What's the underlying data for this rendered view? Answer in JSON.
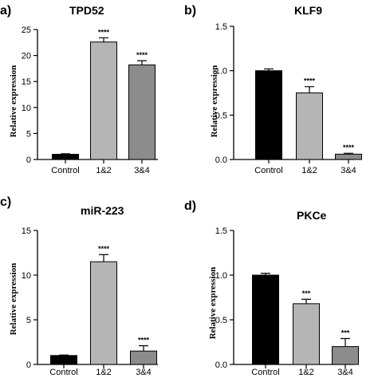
{
  "chart_data": [
    {
      "type": "bar",
      "panel_letter": "a)",
      "title": "TPD52",
      "ylabel": "Relative expression",
      "categories": [
        "Control",
        "1&2",
        "3&4"
      ],
      "values": [
        1.0,
        22.6,
        18.2
      ],
      "errors": [
        0.1,
        0.8,
        0.8
      ],
      "significance": [
        "",
        "****",
        "****"
      ],
      "ylim": [
        0,
        25
      ],
      "yticks": [
        "0",
        "5",
        "10",
        "15",
        "20",
        "25"
      ],
      "bar_colors": [
        "#000000",
        "#b5b5b5",
        "#8c8c8c"
      ]
    },
    {
      "type": "bar",
      "panel_letter": "b)",
      "title": "KLF9",
      "ylabel": "Relative expression",
      "categories": [
        "Control",
        "1&2",
        "3&4"
      ],
      "values": [
        1.0,
        0.75,
        0.06
      ],
      "errors": [
        0.02,
        0.07,
        0.01
      ],
      "significance": [
        "",
        "****",
        "****"
      ],
      "ylim": [
        0,
        1.5
      ],
      "yticks": [
        "0.0",
        "0.5",
        "1.0",
        "1.5"
      ],
      "bar_colors": [
        "#000000",
        "#b5b5b5",
        "#8c8c8c"
      ]
    },
    {
      "type": "bar",
      "panel_letter": "c)",
      "title": "miR-223",
      "ylabel": "Relative expression",
      "categories": [
        "Control",
        "1&2",
        "3&4"
      ],
      "values": [
        1.0,
        11.5,
        1.5
      ],
      "errors": [
        0.05,
        0.8,
        0.6
      ],
      "significance": [
        "",
        "****",
        "****"
      ],
      "ylim": [
        0,
        15
      ],
      "yticks": [
        "0",
        "5",
        "10",
        "15"
      ],
      "bar_colors": [
        "#000000",
        "#b5b5b5",
        "#8c8c8c"
      ]
    },
    {
      "type": "bar",
      "panel_letter": "d)",
      "title": "PKCe",
      "ylabel": "Relative expression",
      "categories": [
        "Control",
        "1&2",
        "3&4"
      ],
      "values": [
        1.0,
        0.68,
        0.2
      ],
      "errors": [
        0.02,
        0.05,
        0.09
      ],
      "significance": [
        "",
        "***",
        "***"
      ],
      "ylim": [
        0,
        1.5
      ],
      "yticks": [
        "0.0",
        "0.5",
        "1.0",
        "1.5"
      ],
      "bar_colors": [
        "#000000",
        "#b5b5b5",
        "#8c8c8c"
      ]
    }
  ]
}
